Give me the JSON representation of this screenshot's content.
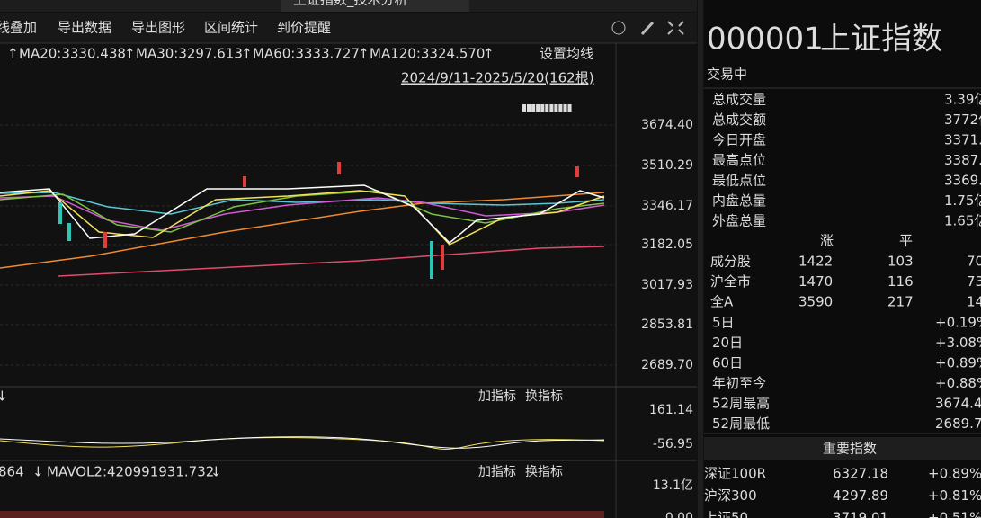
{
  "tabs": [
    "上证指数_技术分析"
  ],
  "toolbar": [
    "线叠加",
    "导出数据",
    "导出图形",
    "区间统计",
    "到价提醒"
  ],
  "ma_legend": [
    {
      "arrow": "↑",
      "text": "MA20:3330.438"
    },
    {
      "arrow": "↑",
      "text": "MA30:3297.613"
    },
    {
      "arrow": "↑",
      "text": "MA60:3333.727"
    },
    {
      "arrow": "↑",
      "text": "MA120:3324.570"
    },
    {
      "arrow": "↑"
    }
  ],
  "ma_settings": "设置均线",
  "date_range": "2024/9/11-2025/5/20(162根)",
  "price_axis": [
    "3674.40",
    "3510.29",
    "3346.17",
    "3182.05",
    "3017.93",
    "2853.81",
    "2689.70"
  ],
  "indicator": {
    "arrow": "↓",
    "add": "加指标",
    "switch": "换指标",
    "axis": [
      "161.14",
      "-56.95"
    ]
  },
  "volume": {
    "legend": [
      "864",
      "↓",
      "MAVOL2:420991931.732",
      "↓"
    ],
    "add": "加指标",
    "switch": "换指标",
    "axis": [
      "13.1亿",
      "0.00"
    ]
  },
  "quote": {
    "code": "000001",
    "name": "上证指数",
    "status": "交易中",
    "stats": [
      [
        "总成交量",
        "3.39亿"
      ],
      [
        "总成交额",
        "3772亿"
      ],
      [
        "今日开盘",
        "3371.6"
      ],
      [
        "最高点位",
        "3387.8"
      ],
      [
        "最低点位",
        "3369.9"
      ],
      [
        "内盘总量",
        "1.75亿"
      ],
      [
        "外盘总量",
        "1.65亿"
      ]
    ]
  },
  "breadth": {
    "headers": [
      "涨",
      "平"
    ],
    "rows": [
      [
        "成分股",
        "1422",
        "103",
        "70"
      ],
      [
        "沪全市",
        "1470",
        "116",
        "73"
      ],
      [
        "全A",
        "3590",
        "217",
        "148"
      ]
    ]
  },
  "performance": [
    [
      "5日",
      "+0.19%"
    ],
    [
      "20日",
      "+3.08%"
    ],
    [
      "60日",
      "+0.89%"
    ],
    [
      "年初至今",
      "+0.88%"
    ],
    [
      "52周最高",
      "3674.4"
    ],
    [
      "52周最低",
      "2689.7"
    ]
  ],
  "indices": {
    "title": "重要指数",
    "rows": [
      [
        "深证100R",
        "6327.18",
        "+0.89%"
      ],
      [
        "沪深300",
        "4297.89",
        "+0.81%"
      ],
      [
        "上证50",
        "3719.01",
        "+0.51%"
      ]
    ]
  }
}
